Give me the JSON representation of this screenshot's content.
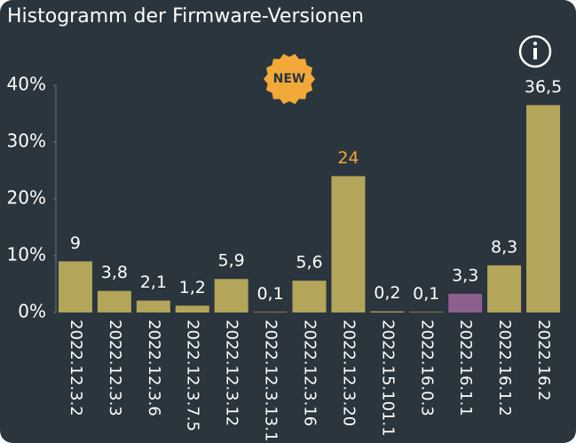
{
  "chart_data": {
    "type": "bar",
    "title": "Histogramm der Firmware-Versionen",
    "badge": "NEW",
    "categories": [
      "2022.12.3.2",
      "2022.12.3.3",
      "2022.12.3.6",
      "2022.12.3.7.5",
      "2022.12.3.12",
      "2022.12.3.13.1",
      "2022.12.3.16",
      "2022.12.3.20",
      "2022.15.101.1",
      "2022.16.0.3",
      "2022.16.1.1",
      "2022.16.1.2",
      "2022.16.2"
    ],
    "values": [
      9,
      3.8,
      2.1,
      1.2,
      5.9,
      0.1,
      5.6,
      24,
      0.2,
      0.1,
      3.3,
      8.3,
      36.5
    ],
    "value_labels": [
      "9",
      "3,8",
      "2,1",
      "1,2",
      "5,9",
      "0,1",
      "5,6",
      "24",
      "0,2",
      "0,1",
      "3,3",
      "8,3",
      "36,5"
    ],
    "colors": [
      "#b3a55a",
      "#b3a55a",
      "#b3a55a",
      "#b3a55a",
      "#b3a55a",
      "#b3a55a",
      "#b3a55a",
      "#b3a55a",
      "#b3a55a",
      "#b3a55a",
      "#8d5f8c",
      "#b3a55a",
      "#b3a55a"
    ],
    "value_label_colors": [
      "#ffffff",
      "#ffffff",
      "#ffffff",
      "#ffffff",
      "#ffffff",
      "#ffffff",
      "#ffffff",
      "#f2a33a",
      "#ffffff",
      "#ffffff",
      "#ffffff",
      "#ffffff",
      "#ffffff"
    ],
    "ylim": [
      0,
      40
    ],
    "yticks": [
      {
        "value": 0,
        "label": "0%"
      },
      {
        "value": 10,
        "label": "10%"
      },
      {
        "value": 20,
        "label": "20%"
      },
      {
        "value": 30,
        "label": "30%"
      },
      {
        "value": 40,
        "label": "40%"
      }
    ],
    "grid": false
  }
}
